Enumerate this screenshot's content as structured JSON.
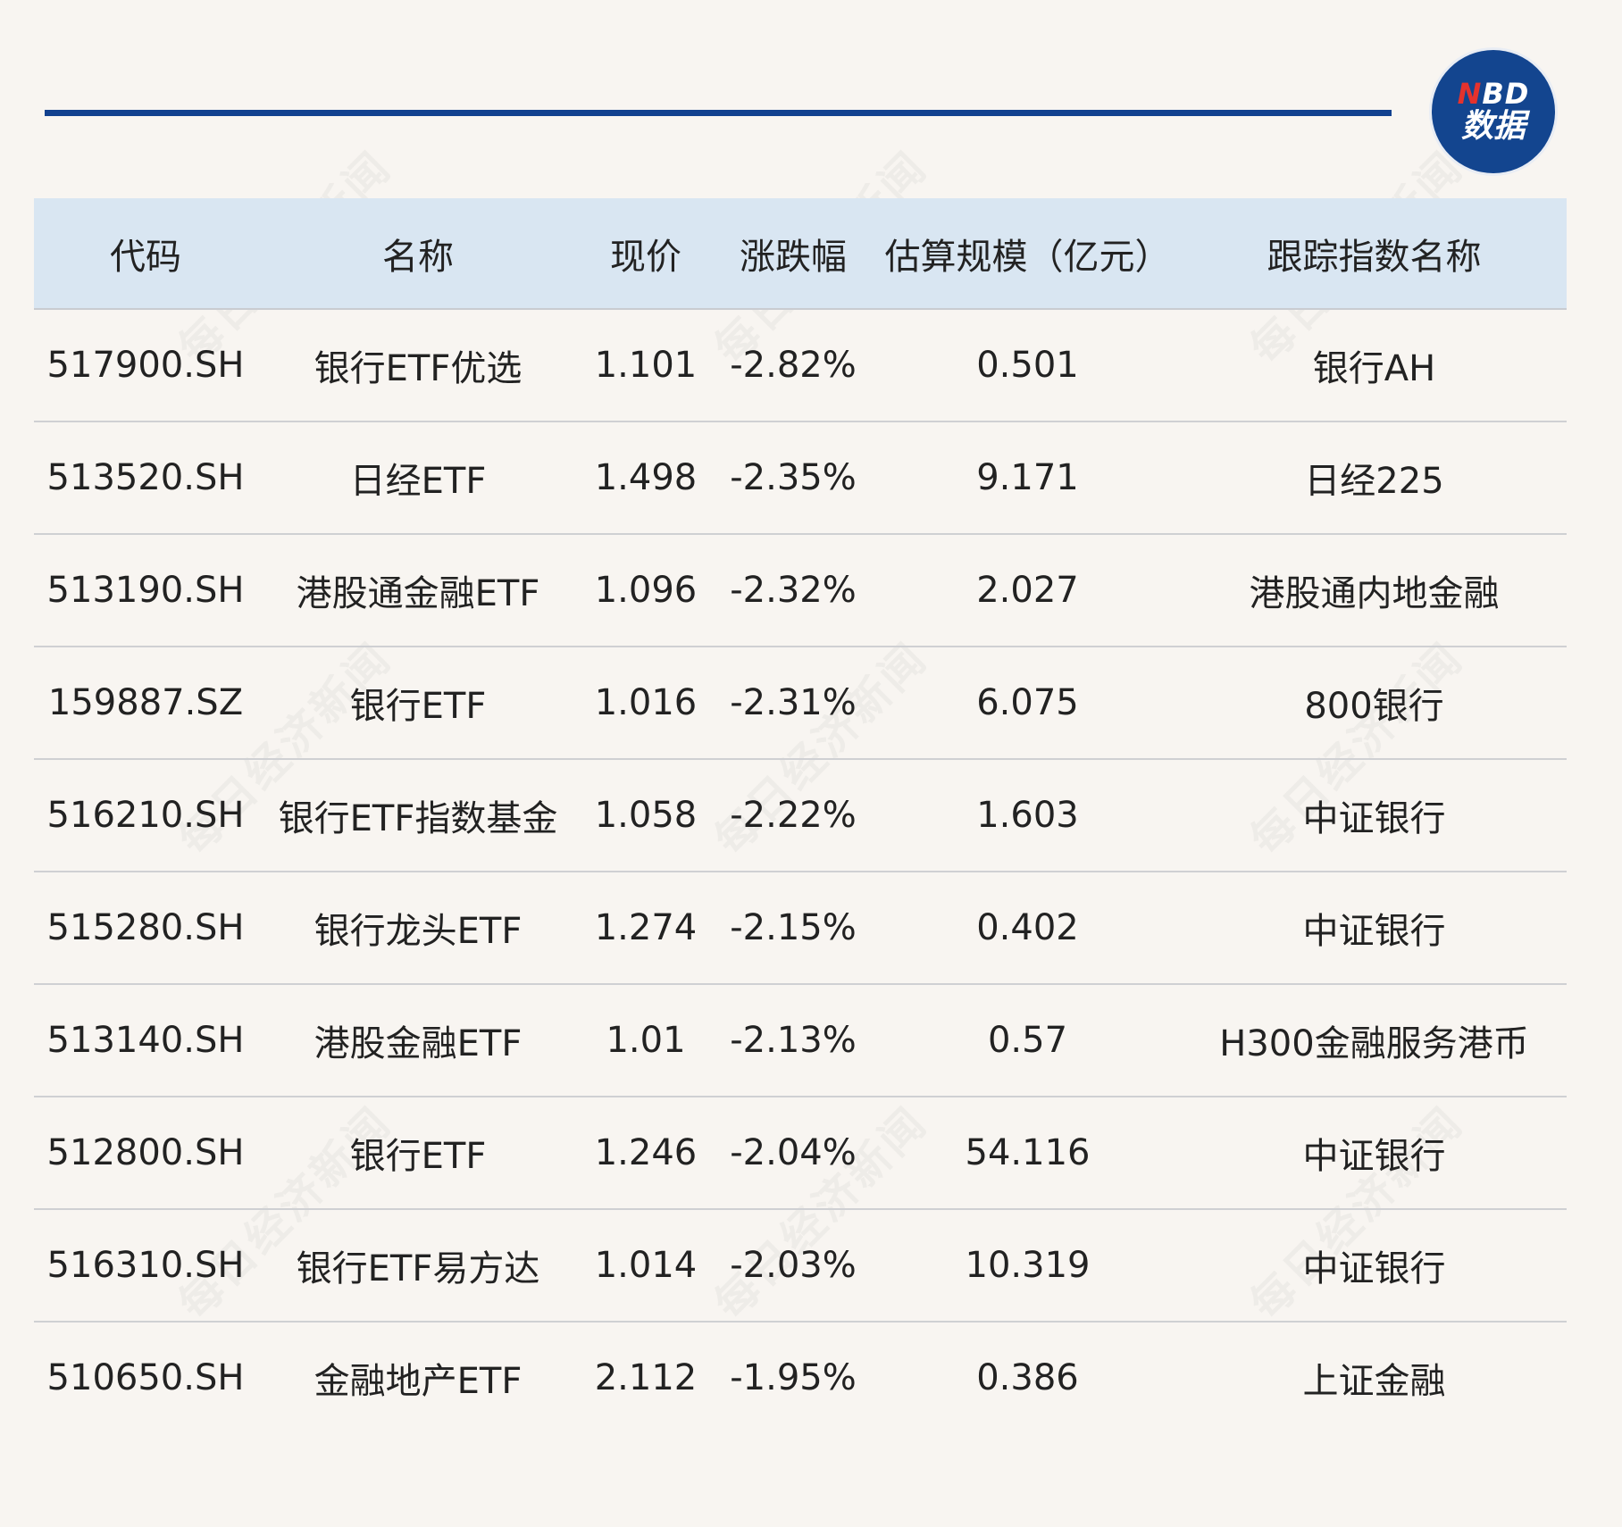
{
  "logo": {
    "line1_n": "N",
    "line1_rest": "BD",
    "line2": "数据"
  },
  "watermark_text": "每日经济新闻",
  "chart_data": {
    "type": "table",
    "columns": [
      "代码",
      "名称",
      "现价",
      "涨跌幅",
      "估算规模（亿元）",
      "跟踪指数名称"
    ],
    "rows": [
      [
        "517900.SH",
        "银行ETF优选",
        "1.101",
        "-2.82%",
        "0.501",
        "银行AH"
      ],
      [
        "513520.SH",
        "日经ETF",
        "1.498",
        "-2.35%",
        "9.171",
        "日经225"
      ],
      [
        "513190.SH",
        "港股通金融ETF",
        "1.096",
        "-2.32%",
        "2.027",
        "港股通内地金融"
      ],
      [
        "159887.SZ",
        "银行ETF",
        "1.016",
        "-2.31%",
        "6.075",
        "800银行"
      ],
      [
        "516210.SH",
        "银行ETF指数基金",
        "1.058",
        "-2.22%",
        "1.603",
        "中证银行"
      ],
      [
        "515280.SH",
        "银行龙头ETF",
        "1.274",
        "-2.15%",
        "0.402",
        "中证银行"
      ],
      [
        "513140.SH",
        "港股金融ETF",
        "1.01",
        "-2.13%",
        "0.57",
        "H300金融服务港币"
      ],
      [
        "512800.SH",
        "银行ETF",
        "1.246",
        "-2.04%",
        "54.116",
        "中证银行"
      ],
      [
        "516310.SH",
        "银行ETF易方达",
        "1.014",
        "-2.03%",
        "10.319",
        "中证银行"
      ],
      [
        "510650.SH",
        "金融地产ETF",
        "2.112",
        "-1.95%",
        "0.386",
        "上证金融"
      ]
    ]
  }
}
